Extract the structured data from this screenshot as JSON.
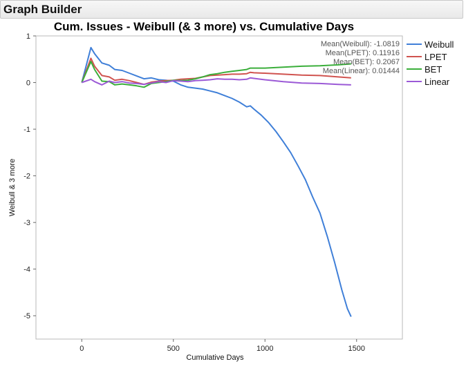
{
  "panel": {
    "title": "Graph Builder"
  },
  "chart_data": {
    "type": "line",
    "title": "Cum. Issues - Weibull (& 3 more) vs. Cumulative Days",
    "xlabel": "Cumulative Days",
    "ylabel": "Weibull & 3 more",
    "xlim": [
      -250,
      1750
    ],
    "ylim": [
      -5.5,
      1
    ],
    "xticks": [
      0,
      500,
      1000,
      1500
    ],
    "yticks": [
      1,
      0,
      -1,
      -2,
      -3,
      -4,
      -5
    ],
    "grid": false,
    "legend_position": "right",
    "annotations": [
      "Mean(Weibull): -1.0819",
      "Mean(LPET): 0.11916",
      "Mean(BET): 0.2067",
      "Mean(Linear): 0.01444"
    ],
    "series": [
      {
        "name": "Weibull",
        "color": "#3f7fd8",
        "x": [
          0,
          50,
          70,
          110,
          150,
          180,
          220,
          260,
          300,
          340,
          380,
          420,
          460,
          500,
          540,
          580,
          620,
          660,
          700,
          740,
          780,
          820,
          860,
          900,
          920,
          940,
          980,
          1020,
          1060,
          1100,
          1140,
          1180,
          1220,
          1260,
          1300,
          1340,
          1380,
          1420,
          1450,
          1470
        ],
        "y": [
          0,
          0.75,
          0.62,
          0.42,
          0.37,
          0.28,
          0.26,
          0.2,
          0.14,
          0.08,
          0.1,
          0.06,
          0.05,
          0.03,
          -0.05,
          -0.1,
          -0.12,
          -0.14,
          -0.18,
          -0.22,
          -0.28,
          -0.34,
          -0.42,
          -0.52,
          -0.5,
          -0.57,
          -0.7,
          -0.86,
          -1.05,
          -1.27,
          -1.5,
          -1.78,
          -2.08,
          -2.45,
          -2.8,
          -3.3,
          -3.85,
          -4.45,
          -4.85,
          -5.02
        ]
      },
      {
        "name": "LPET",
        "color": "#d0534f",
        "x": [
          0,
          50,
          70,
          110,
          150,
          180,
          220,
          260,
          300,
          340,
          380,
          420,
          460,
          500,
          540,
          580,
          620,
          660,
          700,
          740,
          780,
          820,
          860,
          900,
          920,
          940,
          1000,
          1100,
          1200,
          1300,
          1400,
          1470
        ],
        "y": [
          0,
          0.52,
          0.35,
          0.15,
          0.12,
          0.05,
          0.07,
          0.04,
          0.0,
          -0.04,
          0.01,
          0.03,
          0.04,
          0.05,
          0.07,
          0.08,
          0.09,
          0.12,
          0.15,
          0.16,
          0.17,
          0.18,
          0.18,
          0.19,
          0.22,
          0.21,
          0.2,
          0.18,
          0.16,
          0.15,
          0.12,
          0.1
        ]
      },
      {
        "name": "BET",
        "color": "#3aae3a",
        "x": [
          0,
          50,
          70,
          110,
          150,
          180,
          220,
          260,
          300,
          340,
          380,
          420,
          460,
          500,
          540,
          580,
          620,
          660,
          700,
          740,
          780,
          820,
          860,
          900,
          920,
          940,
          1000,
          1100,
          1200,
          1300,
          1400,
          1470
        ],
        "y": [
          0,
          0.45,
          0.28,
          0.03,
          0.02,
          -0.05,
          -0.03,
          -0.05,
          -0.07,
          -0.1,
          -0.02,
          0.0,
          0.02,
          0.05,
          0.04,
          0.05,
          0.08,
          0.12,
          0.17,
          0.19,
          0.22,
          0.24,
          0.26,
          0.28,
          0.31,
          0.31,
          0.31,
          0.33,
          0.35,
          0.36,
          0.38,
          0.4
        ]
      },
      {
        "name": "Linear",
        "color": "#9b59d6",
        "x": [
          0,
          50,
          70,
          110,
          150,
          180,
          220,
          260,
          300,
          340,
          380,
          420,
          460,
          500,
          540,
          580,
          620,
          660,
          700,
          740,
          780,
          820,
          860,
          900,
          920,
          940,
          1000,
          1100,
          1200,
          1300,
          1400,
          1470
        ],
        "y": [
          0,
          0.07,
          0.02,
          -0.05,
          0.03,
          0.0,
          0.02,
          -0.01,
          -0.02,
          -0.04,
          -0.01,
          0.02,
          0.0,
          0.04,
          0.03,
          0.02,
          0.04,
          0.05,
          0.06,
          0.08,
          0.07,
          0.07,
          0.06,
          0.07,
          0.1,
          0.09,
          0.06,
          0.02,
          -0.01,
          -0.02,
          -0.04,
          -0.05
        ]
      }
    ]
  }
}
